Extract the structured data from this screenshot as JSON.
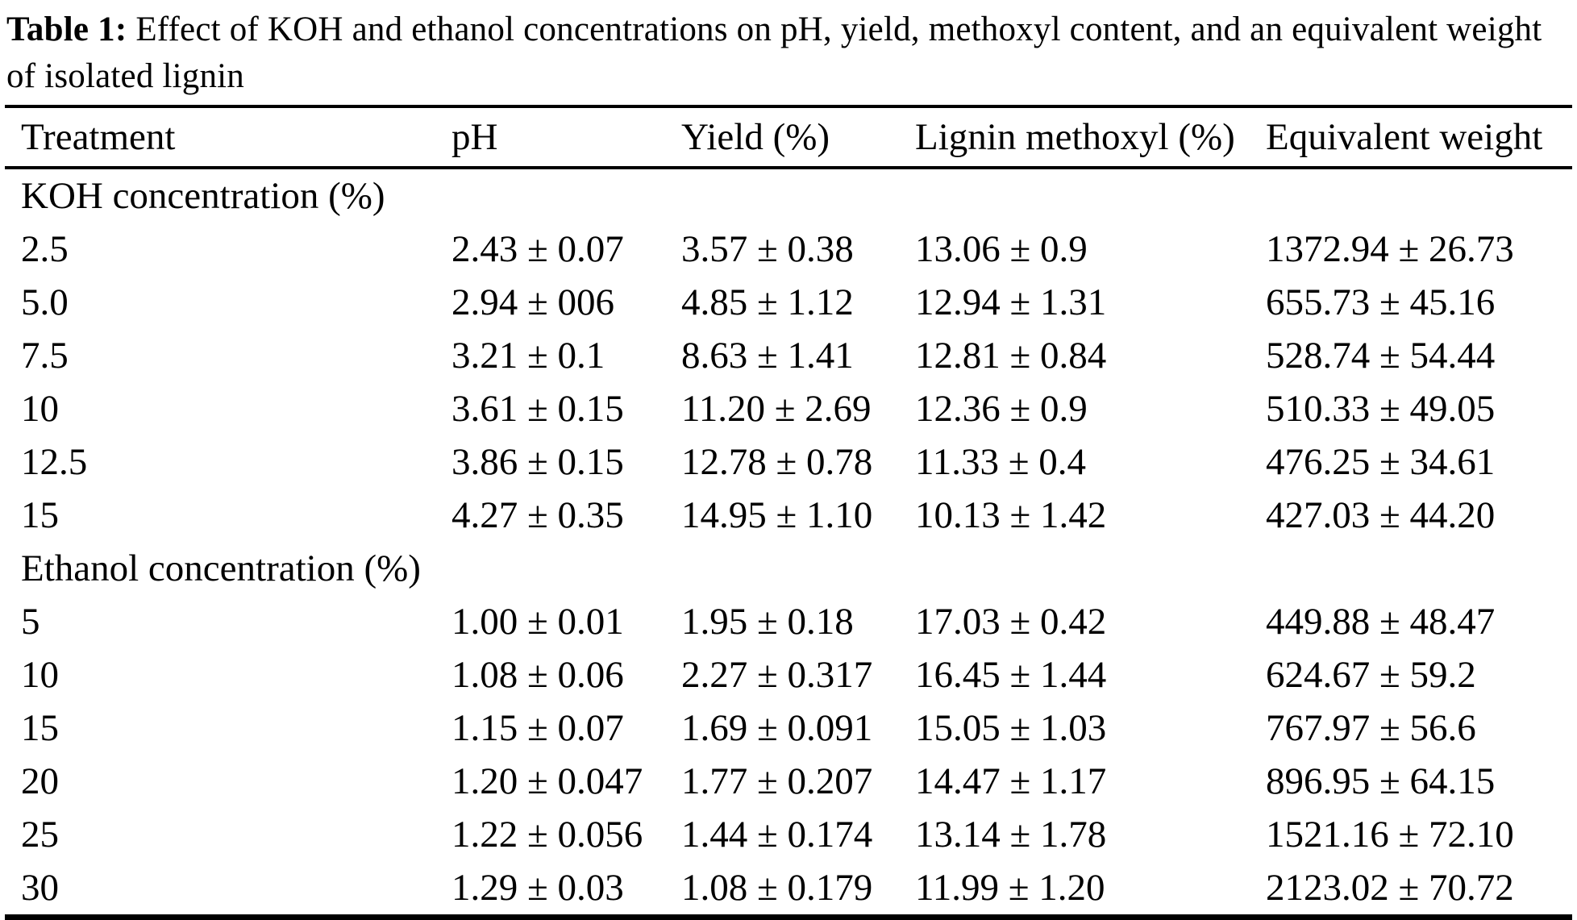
{
  "caption": {
    "label": "Table 1:",
    "text": "Effect of KOH and ethanol concentrations on pH, yield, methoxyl content, and an equivalent weight of isolated lignin"
  },
  "table": {
    "columns": [
      "Treatment",
      "pH",
      "Yield (%)",
      "Lignin methoxyl (%)",
      "Equivalent weight"
    ],
    "sections": [
      {
        "header": "KOH concentration (%)",
        "rows": [
          {
            "treatment": "2.5",
            "ph": "2.43 ± 0.07",
            "yield": "3.57 ± 0.38",
            "methoxyl": "13.06 ± 0.9",
            "eq_weight": "1372.94 ± 26.73"
          },
          {
            "treatment": "5.0",
            "ph": "2.94 ± 006",
            "yield": "4.85 ± 1.12",
            "methoxyl": "12.94 ± 1.31",
            "eq_weight": "655.73 ± 45.16"
          },
          {
            "treatment": "7.5",
            "ph": "3.21 ± 0.1",
            "yield": "8.63 ± 1.41",
            "methoxyl": "12.81 ± 0.84",
            "eq_weight": "528.74 ± 54.44"
          },
          {
            "treatment": "10",
            "ph": "3.61 ± 0.15",
            "yield": "11.20 ± 2.69",
            "methoxyl": "12.36 ± 0.9",
            "eq_weight": "510.33 ± 49.05"
          },
          {
            "treatment": "12.5",
            "ph": "3.86 ± 0.15",
            "yield": "12.78 ± 0.78",
            "methoxyl": "11.33 ± 0.4",
            "eq_weight": "476.25 ± 34.61"
          },
          {
            "treatment": "15",
            "ph": "4.27 ± 0.35",
            "yield": "14.95 ± 1.10",
            "methoxyl": "10.13 ± 1.42",
            "eq_weight": "427.03 ± 44.20"
          }
        ]
      },
      {
        "header": "Ethanol concentration (%)",
        "rows": [
          {
            "treatment": "5",
            "ph": "1.00 ± 0.01",
            "yield": "1.95 ± 0.18",
            "methoxyl": "17.03 ± 0.42",
            "eq_weight": "449.88 ± 48.47"
          },
          {
            "treatment": "10",
            "ph": "1.08 ± 0.06",
            "yield": "2.27 ± 0.317",
            "methoxyl": "16.45 ± 1.44",
            "eq_weight": "624.67 ± 59.2"
          },
          {
            "treatment": "15",
            "ph": "1.15 ± 0.07",
            "yield": "1.69 ± 0.091",
            "methoxyl": "15.05 ± 1.03",
            "eq_weight": "767.97 ± 56.6"
          },
          {
            "treatment": "20",
            "ph": "1.20 ± 0.047",
            "yield": "1.77 ± 0.207",
            "methoxyl": "14.47 ± 1.17",
            "eq_weight": "896.95 ± 64.15"
          },
          {
            "treatment": "25",
            "ph": "1.22 ± 0.056",
            "yield": "1.44 ± 0.174",
            "methoxyl": "13.14 ± 1.78",
            "eq_weight": "1521.16 ± 72.10"
          },
          {
            "treatment": "30",
            "ph": "1.29 ± 0.03",
            "yield": "1.08 ± 0.179",
            "methoxyl": "11.99 ± 1.20",
            "eq_weight": "2123.02 ± 70.72"
          }
        ]
      }
    ]
  }
}
